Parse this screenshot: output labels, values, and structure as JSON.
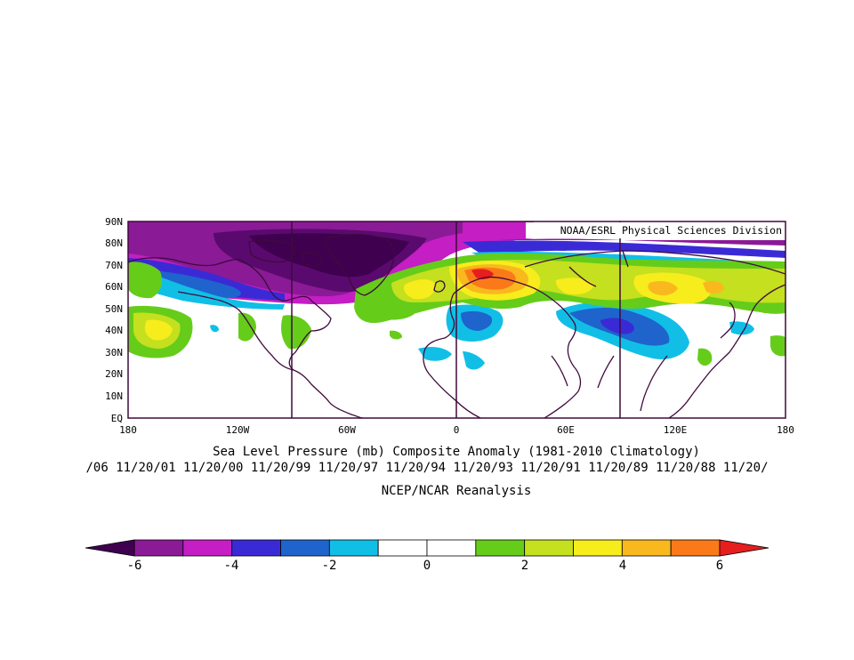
{
  "map": {
    "credit": "NOAA/ESRL Physical Sciences Division",
    "lat_labels": [
      "90N",
      "80N",
      "70N",
      "60N",
      "50N",
      "40N",
      "30N",
      "20N",
      "10N",
      "EQ"
    ],
    "lon_labels": [
      "180",
      "120W",
      "60W",
      "0",
      "60E",
      "120E",
      "180"
    ],
    "projection": "cylindrical equidistant",
    "lon_range": [
      -180,
      180
    ],
    "lat_range": [
      0,
      90
    ]
  },
  "captions": {
    "title": "Sea Level Pressure (mb) Composite Anomaly (1981-2010 Climatology)",
    "dates": "/06 11/20/01 11/20/00 11/20/99 11/20/97 11/20/94 11/20/93 11/20/91 11/20/89 11/20/88 11/20/",
    "source": "NCEP/NCAR Reanalysis"
  },
  "colorbar": {
    "tick_labels": [
      "-6",
      "-4",
      "-2",
      "0",
      "2",
      "4",
      "6"
    ],
    "colors": [
      "#3f0050",
      "#8b1a96",
      "#c41ec4",
      "#3a2ad6",
      "#1e64cc",
      "#11bfe6",
      "#ffffff",
      "#ffffff",
      "#66cc1a",
      "#c4e01e",
      "#f7ec1c",
      "#f9b81e",
      "#fa7a1a",
      "#e61e1e"
    ]
  }
}
